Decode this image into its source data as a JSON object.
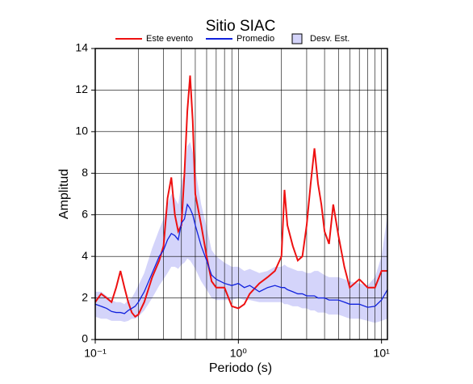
{
  "chart_data": {
    "type": "line",
    "title": "Sitio SIAC",
    "x_label": "Periodo (s)",
    "y_label": "Amplitud",
    "log_x": true,
    "grid": true,
    "xlim": [
      0.1,
      11
    ],
    "ylim": [
      0,
      14
    ],
    "xticks": [
      {
        "value": 0.1,
        "label": "10⁻¹"
      },
      {
        "value": 1,
        "label": "10⁰"
      },
      {
        "value": 10,
        "label": "10¹"
      }
    ],
    "xminorticks": [
      0.2,
      0.3,
      0.4,
      0.5,
      0.6,
      0.7,
      0.8,
      0.9,
      2,
      3,
      4,
      5,
      6,
      7,
      8,
      9
    ],
    "yticks": [
      0,
      2,
      4,
      6,
      8,
      10,
      12,
      14
    ],
    "x": [
      0.1,
      0.11,
      0.12,
      0.13,
      0.14,
      0.15,
      0.16,
      0.17,
      0.18,
      0.19,
      0.2,
      0.22,
      0.25,
      0.28,
      0.3,
      0.32,
      0.34,
      0.36,
      0.38,
      0.4,
      0.42,
      0.44,
      0.46,
      0.48,
      0.5,
      0.55,
      0.6,
      0.65,
      0.7,
      0.8,
      0.9,
      1.0,
      1.1,
      1.2,
      1.4,
      1.6,
      1.8,
      2.0,
      2.1,
      2.2,
      2.4,
      2.6,
      2.8,
      3.0,
      3.2,
      3.4,
      3.6,
      3.8,
      4.0,
      4.3,
      4.6,
      5.0,
      5.5,
      6.0,
      7,
      8,
      9,
      10,
      11
    ],
    "series": [
      {
        "name": "Este evento",
        "color": "#ee1111",
        "values": [
          1.8,
          2.2,
          2.0,
          1.8,
          2.5,
          3.3,
          2.5,
          1.8,
          1.3,
          1.1,
          1.2,
          1.8,
          3.0,
          3.8,
          4.5,
          6.8,
          7.8,
          6.0,
          5.2,
          5.5,
          8.0,
          11.0,
          12.7,
          10.5,
          7.0,
          5.5,
          4.0,
          2.8,
          2.5,
          2.5,
          1.6,
          1.5,
          1.7,
          2.2,
          2.7,
          3.0,
          3.3,
          4.0,
          7.2,
          5.5,
          4.5,
          3.8,
          4.0,
          5.5,
          7.5,
          9.2,
          7.5,
          6.5,
          5.2,
          4.6,
          6.5,
          5.0,
          3.5,
          2.5,
          2.9,
          2.5,
          2.5,
          3.3,
          3.3
        ]
      },
      {
        "name": "Promedio",
        "color": "#1122dd",
        "values": [
          1.7,
          1.6,
          1.5,
          1.35,
          1.3,
          1.3,
          1.25,
          1.4,
          1.5,
          1.6,
          1.8,
          2.3,
          3.2,
          4.0,
          4.3,
          4.8,
          5.1,
          5.0,
          4.8,
          5.6,
          5.8,
          6.5,
          6.3,
          6.0,
          5.5,
          4.5,
          3.8,
          3.1,
          2.9,
          2.7,
          2.6,
          2.7,
          2.5,
          2.6,
          2.3,
          2.5,
          2.6,
          2.5,
          2.5,
          2.4,
          2.3,
          2.2,
          2.2,
          2.1,
          2.1,
          2.1,
          2.0,
          2.0,
          2.0,
          1.9,
          1.9,
          1.9,
          1.8,
          1.7,
          1.7,
          1.55,
          1.6,
          1.9,
          2.4
        ]
      },
      {
        "name": "Desv. Est.",
        "color": "#d4d4fa",
        "lower": [
          1.1,
          1.0,
          1.0,
          0.9,
          0.9,
          0.9,
          0.85,
          0.9,
          1.0,
          1.0,
          1.1,
          1.4,
          2.0,
          2.6,
          2.9,
          3.2,
          3.5,
          3.5,
          3.4,
          3.6,
          3.7,
          3.9,
          3.8,
          3.6,
          3.4,
          2.8,
          2.4,
          2.0,
          1.9,
          1.9,
          1.9,
          2.0,
          1.9,
          1.9,
          1.8,
          1.8,
          1.8,
          1.8,
          1.7,
          1.7,
          1.6,
          1.6,
          1.5,
          1.5,
          1.4,
          1.4,
          1.3,
          1.3,
          1.3,
          1.2,
          1.2,
          1.2,
          1.1,
          1.0,
          1.0,
          0.9,
          0.8,
          0.9,
          1.0
        ],
        "upper": [
          2.3,
          2.3,
          2.1,
          1.9,
          1.8,
          1.8,
          1.7,
          1.9,
          2.0,
          2.3,
          2.6,
          3.2,
          4.4,
          5.3,
          5.8,
          6.5,
          7.0,
          6.8,
          6.5,
          7.6,
          8.0,
          9.3,
          9.5,
          9.0,
          8.2,
          6.5,
          5.4,
          4.3,
          4.0,
          3.7,
          3.5,
          3.5,
          3.3,
          3.4,
          3.2,
          3.3,
          3.5,
          3.5,
          3.6,
          3.5,
          3.4,
          3.3,
          3.3,
          3.2,
          3.2,
          3.3,
          3.3,
          3.2,
          3.1,
          3.0,
          3.0,
          3.0,
          2.9,
          2.8,
          2.7,
          2.6,
          3.0,
          4.0,
          6.0
        ]
      }
    ]
  }
}
